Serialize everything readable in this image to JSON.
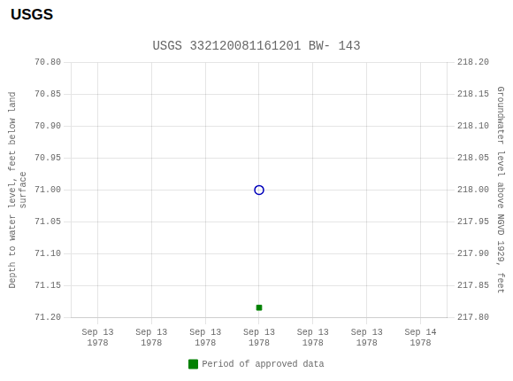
{
  "chart_data": {
    "type": "scatter",
    "title": "USGS 332120081161201 BW- 143",
    "annotations": [
      "USGS"
    ],
    "y_label": "Depth to water level, feet below land\nsurface",
    "y2_label": "Groundwater level above NGVD 1929, feet",
    "categories": [
      "Sep 13\n1978",
      "Sep 13\n1978",
      "Sep 13\n1978",
      "Sep 13\n1978",
      "Sep 13\n1978",
      "Sep 13\n1978",
      "Sep 14\n1978"
    ],
    "series": [
      {
        "color": "#0000bb",
        "marker": "circle_open",
        "values": [
          null,
          null,
          null,
          71.0,
          null,
          null,
          null
        ]
      },
      {
        "name": "Period of approved data",
        "color": "#008000",
        "marker": "square",
        "values": [
          null,
          null,
          null,
          71.185,
          null,
          null,
          null
        ]
      }
    ],
    "ylim": [
      71.2,
      70.8
    ],
    "yticks": [
      {
        "value": 70.8,
        "label": "70.80"
      },
      {
        "value": 70.85,
        "label": "70.85"
      },
      {
        "value": 70.9,
        "label": "70.90"
      },
      {
        "value": 70.95,
        "label": "70.95"
      },
      {
        "value": 71.0,
        "label": "71.00"
      },
      {
        "value": 71.05,
        "label": "71.05"
      },
      {
        "value": 71.1,
        "label": "71.10"
      },
      {
        "value": 71.15,
        "label": "71.15"
      },
      {
        "value": 71.2,
        "label": "71.20"
      }
    ],
    "y2lim": [
      217.8,
      218.2
    ],
    "y2ticks": [
      {
        "value": 217.8,
        "label": "217.80"
      },
      {
        "value": 217.85,
        "label": "217.85"
      },
      {
        "value": 217.9,
        "label": "217.90"
      },
      {
        "value": 217.95,
        "label": "217.95"
      },
      {
        "value": 218.0,
        "label": "218.00"
      },
      {
        "value": 218.05,
        "label": "218.05"
      },
      {
        "value": 218.1,
        "label": "218.10"
      },
      {
        "value": 218.15,
        "label": "218.15"
      },
      {
        "value": 218.2,
        "label": "218.20"
      }
    ],
    "grid": true,
    "legend": "bottom"
  }
}
